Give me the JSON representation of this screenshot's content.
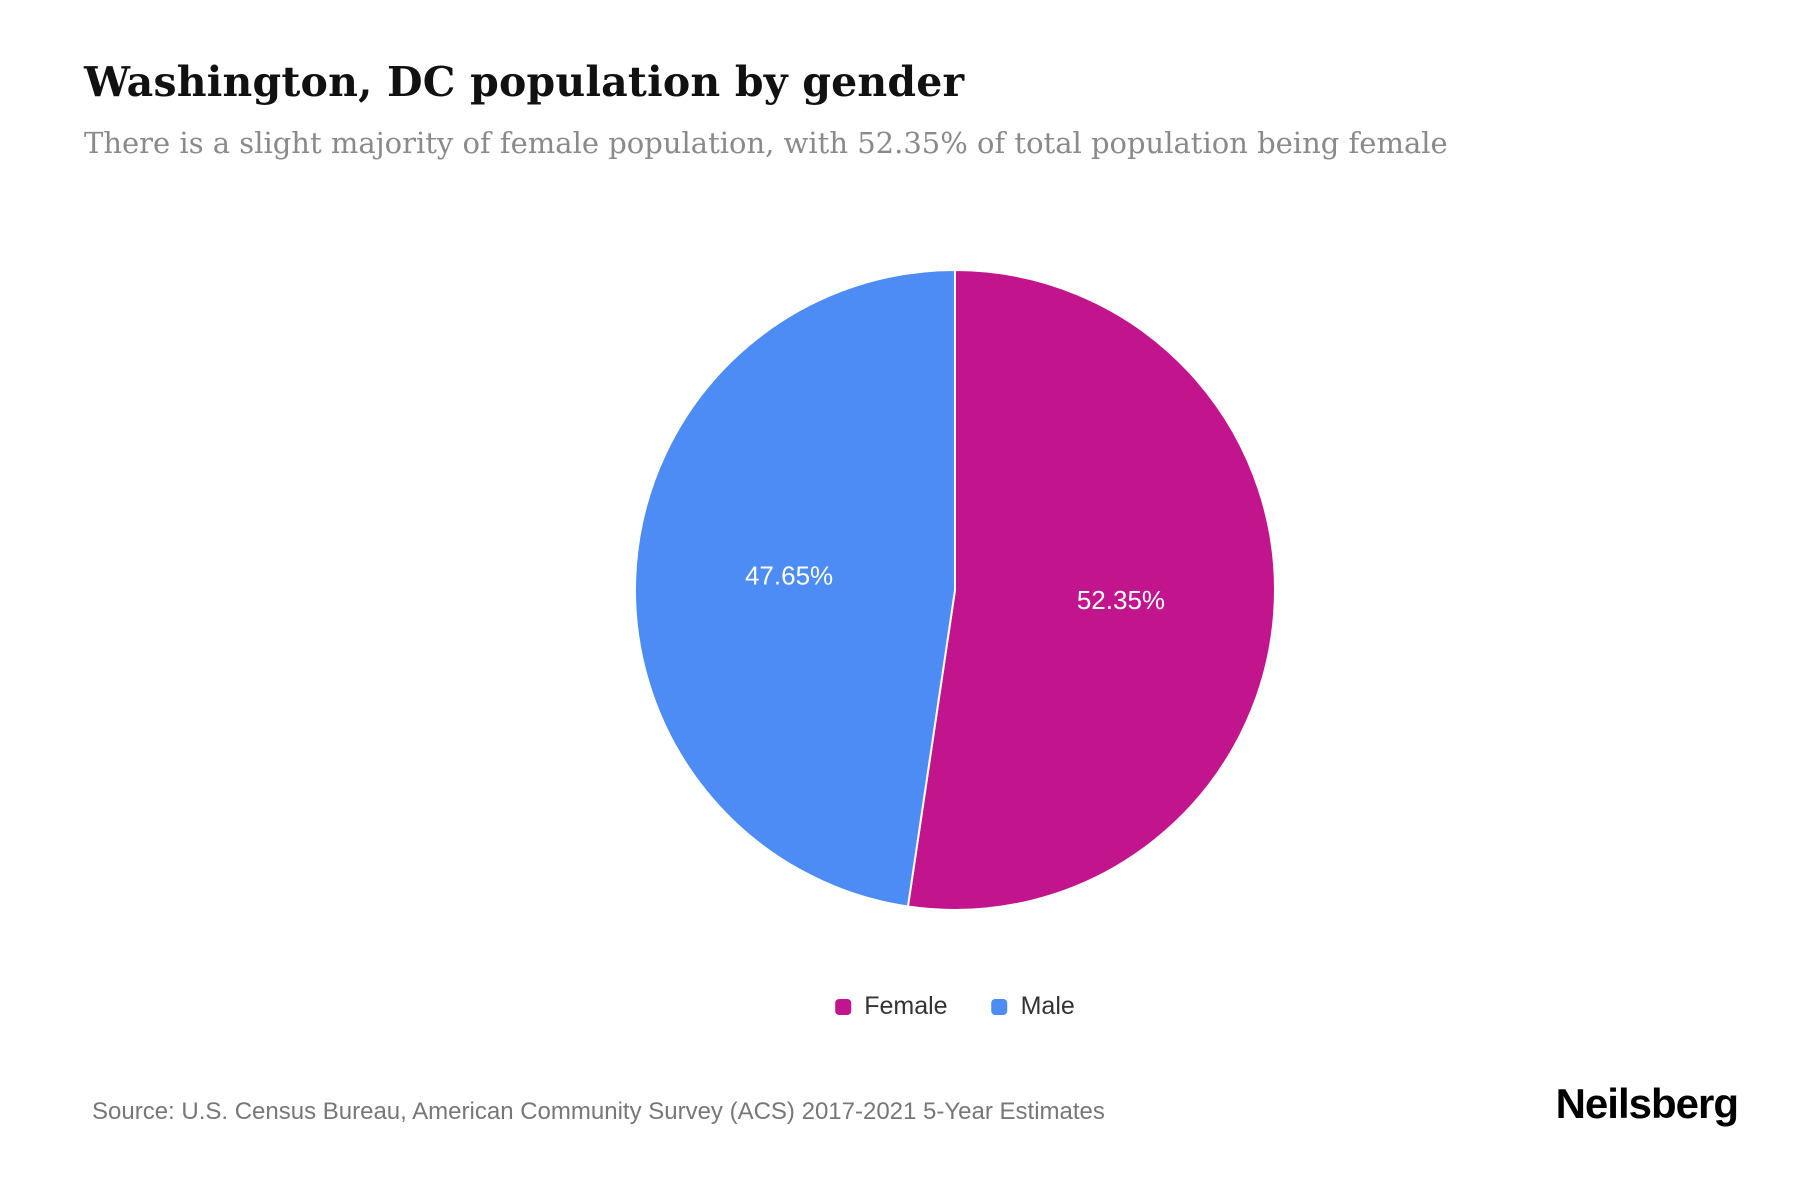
{
  "header": {
    "title": "Washington, DC population by gender",
    "subtitle": "There is a slight majority of female population, with 52.35% of total population being female"
  },
  "chart_data": {
    "type": "pie",
    "title": "Washington, DC population by gender",
    "start_angle_deg": -90,
    "direction": "clockwise",
    "label_color": "#ffffff",
    "legend_position": "bottom",
    "slices": [
      {
        "label": "Female",
        "value": 52.35,
        "display": "52.35%",
        "color": "#C2148C"
      },
      {
        "label": "Male",
        "value": 47.65,
        "display": "47.65%",
        "color": "#4D8CF5"
      }
    ]
  },
  "legend": {
    "items": [
      {
        "label": "Female",
        "color": "#C2148C"
      },
      {
        "label": "Male",
        "color": "#4D8CF5"
      }
    ]
  },
  "footer": {
    "source": "Source: U.S. Census Bureau, American Community Survey (ACS) 2017-2021 5-Year Estimates",
    "brand": "Neilsberg"
  }
}
